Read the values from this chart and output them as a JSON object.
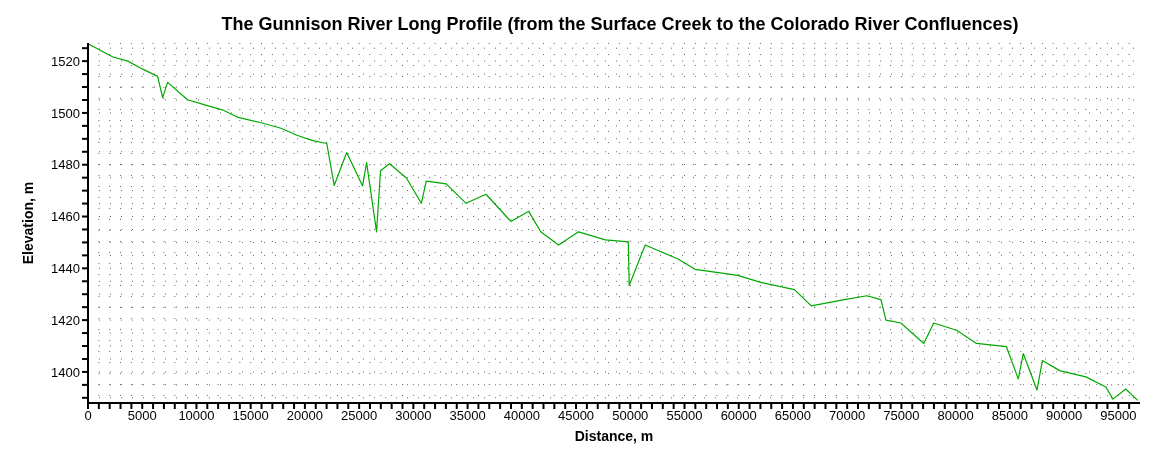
{
  "chart_data": {
    "type": "line",
    "title": "The Gunnison River Long Profile (from the Surface Creek to the Colorado River Confluences)",
    "xlabel": "Distance, m",
    "ylabel": "Elevation, m",
    "x": [
      0,
      917,
      2294,
      3670,
      5046,
      6422,
      6881,
      7339,
      9174,
      11009,
      12385,
      13761,
      16055,
      17798,
      19266,
      20642,
      22018,
      22700,
      23853,
      25321,
      25688,
      26606,
      26972,
      27800,
      29357,
      30733,
      31192,
      33027,
      34862,
      36696,
      38990,
      40641,
      41742,
      43394,
      45229,
      47706,
      49816,
      49900,
      51376,
      54404,
      55963,
      57798,
      59906,
      62110,
      65135,
      66694,
      69722,
      71832,
      73116,
      73575,
      74952,
      77062,
      77979,
      80090,
      81925,
      84676,
      85777,
      86236,
      87500,
      88000,
      89630,
      92015,
      93853,
      94500,
      95685,
      96786
    ],
    "series": [
      {
        "color": "#00a800",
        "values": [
          1526.7,
          1524.7,
          1521.6,
          1520,
          1516.9,
          1514.1,
          1505.9,
          1511.8,
          1505.1,
          1502.8,
          1501.2,
          1498.4,
          1496.1,
          1494.1,
          1491.4,
          1489.4,
          1488.2,
          1472,
          1484.7,
          1471.8,
          1480.8,
          1454.1,
          1477.7,
          1480.4,
          1474.9,
          1465.1,
          1473.7,
          1472.6,
          1465.1,
          1468.6,
          1458.1,
          1462,
          1454.1,
          1449,
          1454.1,
          1451,
          1450.2,
          1433.4,
          1449,
          1443.6,
          1439.6,
          1438.5,
          1437.3,
          1434.5,
          1431.8,
          1425.5,
          1427.9,
          1429.4,
          1427.9,
          1420,
          1418.9,
          1411,
          1418.9,
          1416.1,
          1411,
          1409.8,
          1397.3,
          1407.1,
          1393,
          1404.4,
          1400.4,
          1398.1,
          1394.2,
          1389.5,
          1393.4,
          1389
        ]
      }
    ],
    "xlim": [
      0,
      97000
    ],
    "ylim": [
      1388,
      1527
    ],
    "xticks": [
      0,
      {
        "value": 1000,
        "label": null
      },
      {
        "value": 2000,
        "label": null
      },
      {
        "value": 3000,
        "label": null
      },
      {
        "value": 4000,
        "label": null
      },
      5000,
      {
        "value": 6000,
        "label": null
      },
      {
        "value": 7000,
        "label": null
      },
      {
        "value": 8000,
        "label": null
      },
      {
        "value": 9000,
        "label": null
      },
      10000,
      {
        "value": 11000,
        "label": null
      },
      {
        "value": 12000,
        "label": null
      },
      {
        "value": 13000,
        "label": null
      },
      {
        "value": 14000,
        "label": null
      },
      15000,
      {
        "value": 16000,
        "label": null
      },
      {
        "value": 17000,
        "label": null
      },
      {
        "value": 18000,
        "label": null
      },
      {
        "value": 19000,
        "label": null
      },
      20000,
      {
        "value": 21000,
        "label": null
      },
      {
        "value": 22000,
        "label": null
      },
      {
        "value": 23000,
        "label": null
      },
      {
        "value": 24000,
        "label": null
      },
      25000,
      {
        "value": 26000,
        "label": null
      },
      {
        "value": 27000,
        "label": null
      },
      {
        "value": 28000,
        "label": null
      },
      {
        "value": 29000,
        "label": null
      },
      30000,
      {
        "value": 31000,
        "label": null
      },
      {
        "value": 32000,
        "label": null
      },
      {
        "value": 33000,
        "label": null
      },
      {
        "value": 34000,
        "label": null
      },
      35000,
      {
        "value": 36000,
        "label": null
      },
      {
        "value": 37000,
        "label": null
      },
      {
        "value": 38000,
        "label": null
      },
      {
        "value": 39000,
        "label": null
      },
      40000,
      {
        "value": 41000,
        "label": null
      },
      {
        "value": 42000,
        "label": null
      },
      {
        "value": 43000,
        "label": null
      },
      {
        "value": 44000,
        "label": null
      },
      45000,
      {
        "value": 46000,
        "label": null
      },
      {
        "value": 47000,
        "label": null
      },
      {
        "value": 48000,
        "label": null
      },
      {
        "value": 49000,
        "label": null
      },
      50000,
      {
        "value": 51000,
        "label": null
      },
      {
        "value": 52000,
        "label": null
      },
      {
        "value": 53000,
        "label": null
      },
      {
        "value": 54000,
        "label": null
      },
      55000,
      {
        "value": 56000,
        "label": null
      },
      {
        "value": 57000,
        "label": null
      },
      {
        "value": 58000,
        "label": null
      },
      {
        "value": 59000,
        "label": null
      },
      60000,
      {
        "value": 61000,
        "label": null
      },
      {
        "value": 62000,
        "label": null
      },
      {
        "value": 63000,
        "label": null
      },
      {
        "value": 64000,
        "label": null
      },
      65000,
      {
        "value": 66000,
        "label": null
      },
      {
        "value": 67000,
        "label": null
      },
      {
        "value": 68000,
        "label": null
      },
      {
        "value": 69000,
        "label": null
      },
      70000,
      {
        "value": 71000,
        "label": null
      },
      {
        "value": 72000,
        "label": null
      },
      {
        "value": 73000,
        "label": null
      },
      {
        "value": 74000,
        "label": null
      },
      75000,
      {
        "value": 76000,
        "label": null
      },
      {
        "value": 77000,
        "label": null
      },
      {
        "value": 78000,
        "label": null
      },
      {
        "value": 79000,
        "label": null
      },
      80000,
      {
        "value": 81000,
        "label": null
      },
      {
        "value": 82000,
        "label": null
      },
      {
        "value": 83000,
        "label": null
      },
      {
        "value": 84000,
        "label": null
      },
      85000,
      {
        "value": 86000,
        "label": null
      },
      {
        "value": 87000,
        "label": null
      },
      {
        "value": 88000,
        "label": null
      },
      {
        "value": 89000,
        "label": null
      },
      90000,
      {
        "value": 91000,
        "label": null
      },
      {
        "value": 92000,
        "label": null
      },
      {
        "value": 93000,
        "label": null
      },
      {
        "value": 94000,
        "label": null
      },
      95000,
      {
        "value": 96000,
        "label": null
      }
    ],
    "yticks": [
      {
        "value": 1390,
        "label": null
      },
      {
        "value": 1395,
        "label": null
      },
      1400,
      {
        "value": 1405,
        "label": null
      },
      {
        "value": 1410,
        "label": null
      },
      {
        "value": 1415,
        "label": null
      },
      1420,
      {
        "value": 1425,
        "label": null
      },
      {
        "value": 1430,
        "label": null
      },
      {
        "value": 1435,
        "label": null
      },
      1440,
      {
        "value": 1445,
        "label": null
      },
      {
        "value": 1450,
        "label": null
      },
      {
        "value": 1455,
        "label": null
      },
      1460,
      {
        "value": 1465,
        "label": null
      },
      {
        "value": 1470,
        "label": null
      },
      {
        "value": 1475,
        "label": null
      },
      1480,
      {
        "value": 1485,
        "label": null
      },
      {
        "value": 1490,
        "label": null
      },
      {
        "value": 1495,
        "label": null
      },
      1500,
      {
        "value": 1505,
        "label": null
      },
      {
        "value": 1510,
        "label": null
      },
      {
        "value": 1515,
        "label": null
      },
      1520,
      {
        "value": 1525,
        "label": null
      }
    ],
    "grid": true,
    "marker": "none",
    "line_style": "solid"
  }
}
